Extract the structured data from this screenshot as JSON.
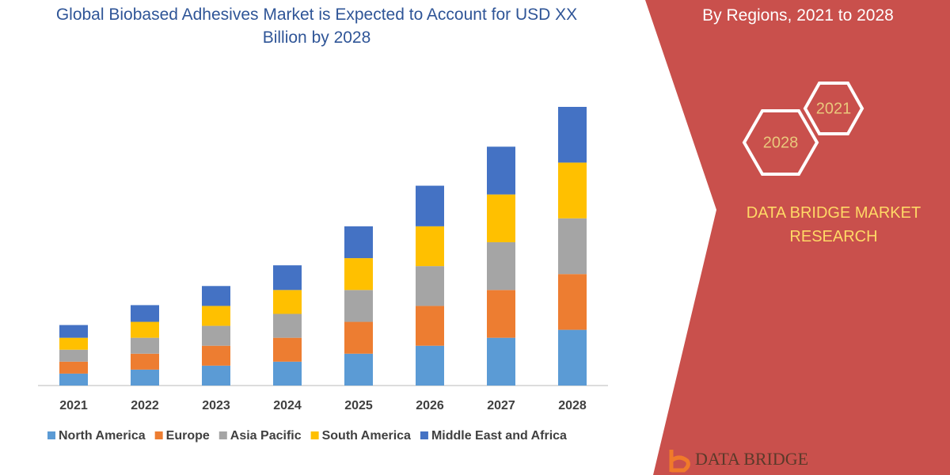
{
  "chart_data": {
    "type": "stacked-bar",
    "title": "Global Biobased Adhesives Market is Expected to Account for USD XX Billion by 2028",
    "subtitle": "By Regions, 2021 to 2028",
    "categories": [
      "2021",
      "2022",
      "2023",
      "2024",
      "2025",
      "2026",
      "2027",
      "2028"
    ],
    "series": [
      {
        "name": "North America",
        "color": "#5b9bd5",
        "values": [
          15,
          20,
          25,
          30,
          40,
          50,
          60,
          70
        ]
      },
      {
        "name": "Europe",
        "color": "#ed7d31",
        "values": [
          15,
          20,
          25,
          30,
          40,
          50,
          60,
          70
        ]
      },
      {
        "name": "Asia Pacific",
        "color": "#a5a5a5",
        "values": [
          15,
          20,
          25,
          30,
          40,
          50,
          60,
          70
        ]
      },
      {
        "name": "South America",
        "color": "#ffc000",
        "values": [
          15,
          20,
          25,
          30,
          40,
          50,
          60,
          70
        ]
      },
      {
        "name": "Middle East and Africa",
        "color": "#4472c4",
        "values": [
          16,
          21,
          25,
          31,
          40,
          51,
          60,
          70
        ]
      }
    ],
    "legend": "bottom",
    "badges": [
      "2021",
      "2028"
    ],
    "brand": "DATA BRIDGE MARKET RESEARCH",
    "logo": "DATA BRIDGE"
  }
}
